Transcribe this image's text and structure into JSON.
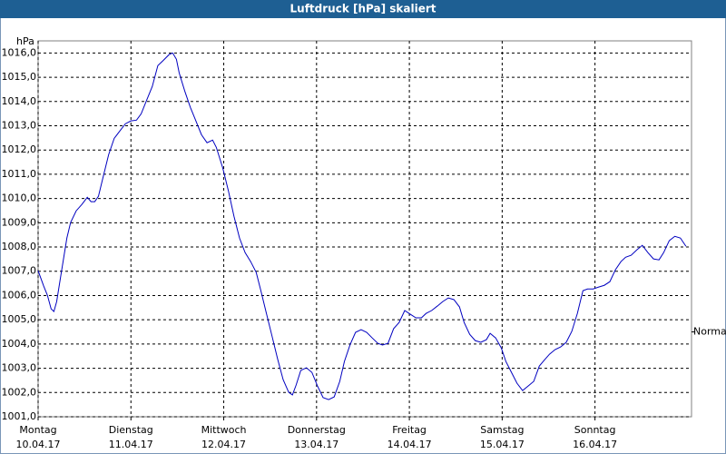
{
  "chart_data": {
    "type": "line",
    "title": "Luftdruck [hPa] skaliert",
    "y_unit": "hPa",
    "color": "#0000c0",
    "grid": true,
    "xlim": [
      0,
      7.04
    ],
    "ylim": [
      1001,
      1016.5
    ],
    "xticks": [
      {
        "value": 0,
        "label": "Montag",
        "date": "10.04.17"
      },
      {
        "value": 1,
        "label": "Dienstag",
        "date": "11.04.17"
      },
      {
        "value": 2,
        "label": "Mittwoch",
        "date": "12.04.17"
      },
      {
        "value": 3,
        "label": "Donnerstag",
        "date": "13.04.17"
      },
      {
        "value": 4,
        "label": "Freitag",
        "date": "14.04.17"
      },
      {
        "value": 5,
        "label": "Samstag",
        "date": "15.04.17"
      },
      {
        "value": 6,
        "label": "Sonntag",
        "date": "16.04.17"
      }
    ],
    "yticks": [
      {
        "value": 1001,
        "label": "1001,0"
      },
      {
        "value": 1002,
        "label": "1002,0"
      },
      {
        "value": 1003,
        "label": "1003,0"
      },
      {
        "value": 1004,
        "label": "1004,0"
      },
      {
        "value": 1005,
        "label": "1005,0"
      },
      {
        "value": 1006,
        "label": "1006,0"
      },
      {
        "value": 1007,
        "label": "1007,0"
      },
      {
        "value": 1008,
        "label": "1008,0"
      },
      {
        "value": 1009,
        "label": "1009,0"
      },
      {
        "value": 1010,
        "label": "1010,0"
      },
      {
        "value": 1011,
        "label": "1011,0"
      },
      {
        "value": 1012,
        "label": "1012,0"
      },
      {
        "value": 1013,
        "label": "1013,0"
      },
      {
        "value": 1014,
        "label": "1014,0"
      },
      {
        "value": 1015,
        "label": "1015,0"
      },
      {
        "value": 1016,
        "label": "1016,0"
      }
    ],
    "annotations": [
      {
        "text": "Normal",
        "y": 1004.5
      }
    ],
    "x": [
      0.0,
      0.06,
      0.1,
      0.14,
      0.17,
      0.2,
      0.25,
      0.31,
      0.35,
      0.41,
      0.47,
      0.53,
      0.57,
      0.61,
      0.65,
      0.7,
      0.76,
      0.82,
      0.88,
      0.94,
      1.0,
      1.06,
      1.11,
      1.17,
      1.23,
      1.29,
      1.35,
      1.41,
      1.45,
      1.49,
      1.52,
      1.58,
      1.64,
      1.7,
      1.76,
      1.82,
      1.88,
      1.92,
      1.99,
      2.05,
      2.11,
      2.17,
      2.23,
      2.29,
      2.35,
      2.4,
      2.46,
      2.52,
      2.58,
      2.64,
      2.7,
      2.74,
      2.78,
      2.83,
      2.89,
      2.95,
      3.01,
      3.07,
      3.13,
      3.19,
      3.25,
      3.3,
      3.36,
      3.42,
      3.48,
      3.54,
      3.6,
      3.66,
      3.71,
      3.77,
      3.83,
      3.89,
      3.95,
      4.01,
      4.07,
      4.13,
      4.18,
      4.24,
      4.3,
      4.36,
      4.42,
      4.48,
      4.54,
      4.59,
      4.65,
      4.71,
      4.77,
      4.83,
      4.87,
      4.93,
      4.99,
      5.04,
      5.1,
      5.16,
      5.22,
      5.28,
      5.34,
      5.4,
      5.45,
      5.51,
      5.57,
      5.63,
      5.69,
      5.75,
      5.81,
      5.87,
      5.92,
      5.98,
      6.04,
      6.1,
      6.16,
      6.22,
      6.28,
      6.33,
      6.39,
      6.45,
      6.51,
      6.57,
      6.63,
      6.69,
      6.74,
      6.8,
      6.86,
      6.92,
      6.98
    ],
    "values": [
      1007.02,
      1006.39,
      1006.01,
      1005.45,
      1005.34,
      1005.75,
      1006.95,
      1008.37,
      1009.01,
      1009.49,
      1009.75,
      1010.05,
      1009.87,
      1009.87,
      1010.09,
      1010.88,
      1011.81,
      1012.48,
      1012.78,
      1013.08,
      1013.2,
      1013.23,
      1013.49,
      1014.06,
      1014.62,
      1015.48,
      1015.7,
      1015.93,
      1016.0,
      1015.74,
      1015.18,
      1014.43,
      1013.76,
      1013.2,
      1012.63,
      1012.3,
      1012.41,
      1012.11,
      1011.25,
      1010.32,
      1009.27,
      1008.37,
      1007.77,
      1007.4,
      1006.95,
      1006.2,
      1005.26,
      1004.33,
      1003.39,
      1002.53,
      1002.01,
      1001.9,
      1002.31,
      1002.91,
      1003.02,
      1002.83,
      1002.27,
      1001.79,
      1001.71,
      1001.82,
      1002.46,
      1003.28,
      1003.96,
      1004.48,
      1004.59,
      1004.48,
      1004.25,
      1004.03,
      1003.96,
      1004.03,
      1004.63,
      1004.89,
      1005.38,
      1005.23,
      1005.08,
      1005.08,
      1005.26,
      1005.38,
      1005.56,
      1005.75,
      1005.9,
      1005.83,
      1005.53,
      1004.89,
      1004.4,
      1004.14,
      1004.07,
      1004.18,
      1004.44,
      1004.25,
      1003.84,
      1003.28,
      1002.83,
      1002.38,
      1002.08,
      1002.27,
      1002.46,
      1003.09,
      1003.32,
      1003.58,
      1003.77,
      1003.88,
      1004.07,
      1004.52,
      1005.26,
      1006.2,
      1006.27,
      1006.27,
      1006.35,
      1006.42,
      1006.57,
      1007.06,
      1007.4,
      1007.58,
      1007.66,
      1007.88,
      1008.07,
      1007.77,
      1007.51,
      1007.47,
      1007.77,
      1008.26,
      1008.44,
      1008.37,
      1008.03
    ]
  }
}
